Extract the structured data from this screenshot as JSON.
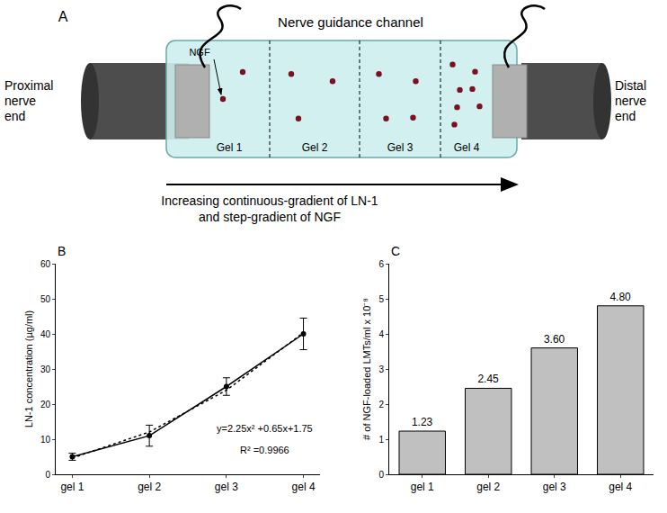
{
  "diagram": {
    "label": "A",
    "title": "Nerve guidance channel",
    "left_end": "Proximal nerve end",
    "right_end": "Distal nerve end",
    "marker_label": "NGF",
    "gels": [
      {
        "label": "Gel 1",
        "dots": 2
      },
      {
        "label": "Gel 2",
        "dots": 3
      },
      {
        "label": "Gel 3",
        "dots": 4
      },
      {
        "label": "Gel 4",
        "dots": 7
      }
    ],
    "arrow_label": "Increasing continuous-gradient of LN-1 and step-gradient of NGF"
  },
  "chart_data": [
    {
      "panel_label": "B",
      "type": "line",
      "categories": [
        "gel 1",
        "gel 2",
        "gel 3",
        "gel 4"
      ],
      "y_label": "LN-1 concentration (µg/ml)",
      "ylim": [
        0,
        60
      ],
      "yticks": [
        0,
        10,
        20,
        30,
        40,
        50,
        60
      ],
      "grid": false,
      "series": [
        {
          "values": [
            5,
            11,
            25,
            40
          ],
          "errors": [
            1,
            3,
            2.5,
            4.5
          ],
          "color": "#000000",
          "marker": "circle",
          "line_style": "solid"
        },
        {
          "values": [
            4.65,
            12.05,
            23.95,
            40.35
          ],
          "color": "#000000",
          "marker": "none",
          "line_style": "dot"
        }
      ],
      "annotations": [
        "y=2.25x² +0.65x+1.75",
        "R² =0.9966"
      ]
    },
    {
      "panel_label": "C",
      "type": "bar",
      "categories": [
        "gel 1",
        "gel 2",
        "gel 3",
        "gel 4"
      ],
      "y_label": "# of NGF-loaded LMTs/ml x 10⁻⁸",
      "ylim": [
        0,
        6
      ],
      "yticks": [
        0,
        1,
        2,
        3,
        4,
        5,
        6
      ],
      "grid": false,
      "values": [
        1.23,
        2.45,
        3.6,
        4.8
      ],
      "value_labels": [
        "1.23",
        "2.45",
        "3.60",
        "4.80"
      ],
      "data_labels": true,
      "color": "#c0c0c0"
    }
  ]
}
